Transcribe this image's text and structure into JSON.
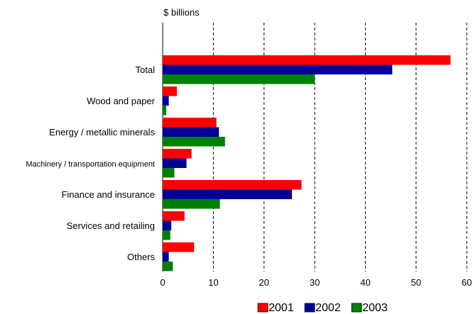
{
  "chart_data": {
    "type": "bar",
    "orientation": "horizontal",
    "title": "",
    "ylabel": "",
    "xlabel": "",
    "unit_label": "$ billions",
    "categories": [
      "Total",
      "Wood and paper",
      "Energy / metallic minerals",
      "Machinery / transportation equipment",
      "Finance and insurance",
      "Services and retailing",
      "Others"
    ],
    "series": [
      {
        "name": "2001",
        "color": "#ff0000",
        "values": [
          56.8,
          2.8,
          10.6,
          5.7,
          27.4,
          4.3,
          6.2
        ]
      },
      {
        "name": "2002",
        "color": "#000099",
        "values": [
          45.3,
          1.2,
          11.1,
          4.7,
          25.5,
          1.7,
          1.2
        ]
      },
      {
        "name": "2003",
        "color": "#008000",
        "values": [
          30.0,
          0.7,
          12.3,
          2.3,
          11.3,
          1.5,
          2.0
        ]
      }
    ],
    "xlim": [
      0,
      60
    ],
    "xticks": [
      0,
      10,
      20,
      30,
      40,
      50,
      60
    ],
    "grid": "vertical-dashed",
    "legend_position": "bottom-right"
  }
}
